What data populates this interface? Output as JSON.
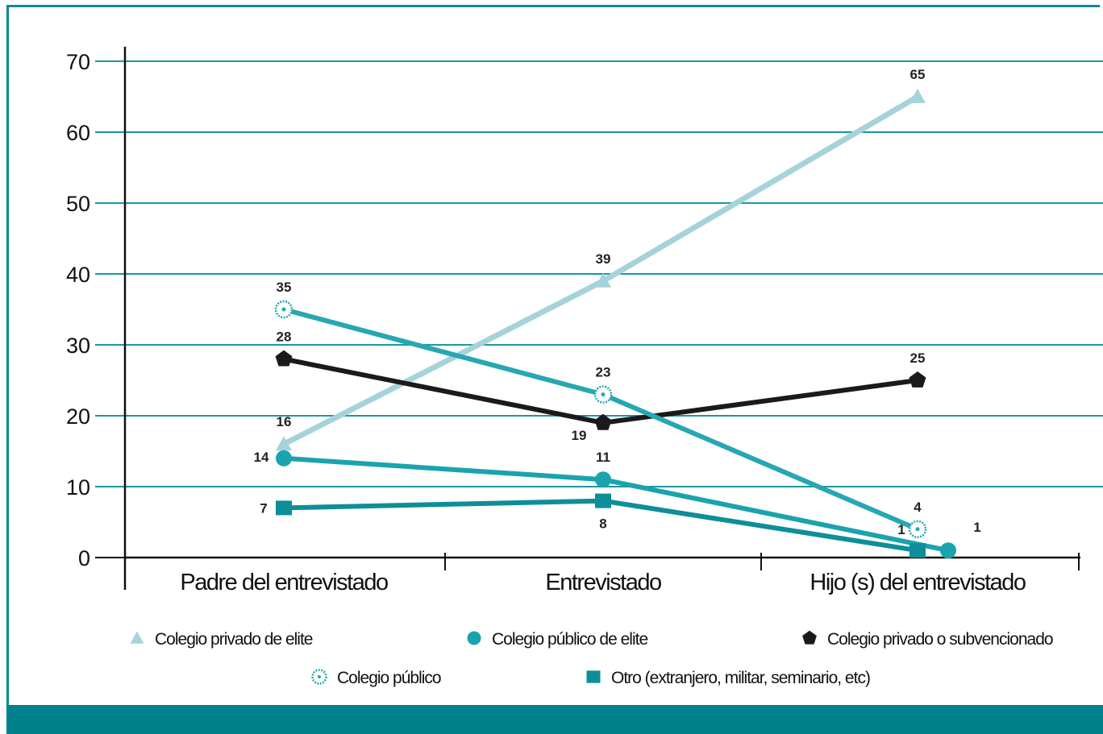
{
  "chart_data": {
    "type": "line",
    "title": "",
    "xlabel": "",
    "ylabel": "",
    "ylim": [
      0,
      70
    ],
    "yticks": [
      "0",
      "10",
      "20",
      "30",
      "40",
      "50",
      "60",
      "70"
    ],
    "categories": [
      "Padre del entrevistado",
      "Entrevistado",
      "Hijo (s) del entrevistado"
    ],
    "grid": true,
    "legend_position": "bottom",
    "series": [
      {
        "name": "Colegio privado de elite",
        "marker": "triangle",
        "color": "#a6d3da",
        "values": [
          16,
          39,
          65
        ],
        "value_labels": [
          "16",
          "39",
          "65"
        ]
      },
      {
        "name": "Colegio público de elite",
        "marker": "circle",
        "color": "#1ba3ad",
        "values": [
          14,
          11,
          1
        ],
        "value_labels": [
          "14",
          "11",
          "1"
        ]
      },
      {
        "name": "Colegio privado o subvencionado",
        "marker": "pentagon",
        "color": "#1a1a1a",
        "values": [
          28,
          19,
          25
        ],
        "value_labels": [
          "28",
          "19",
          "25"
        ]
      },
      {
        "name": "Colegio público",
        "marker": "dotted-circle",
        "color": "#27a7b1",
        "values": [
          35,
          23,
          4
        ],
        "value_labels": [
          "35",
          "23",
          "4"
        ]
      },
      {
        "name": "Otro (extranjero, militar, seminario, etc)",
        "marker": "square",
        "color": "#0e8e99",
        "values": [
          7,
          8,
          1
        ],
        "value_labels": [
          "7",
          "8",
          "1"
        ]
      }
    ]
  }
}
